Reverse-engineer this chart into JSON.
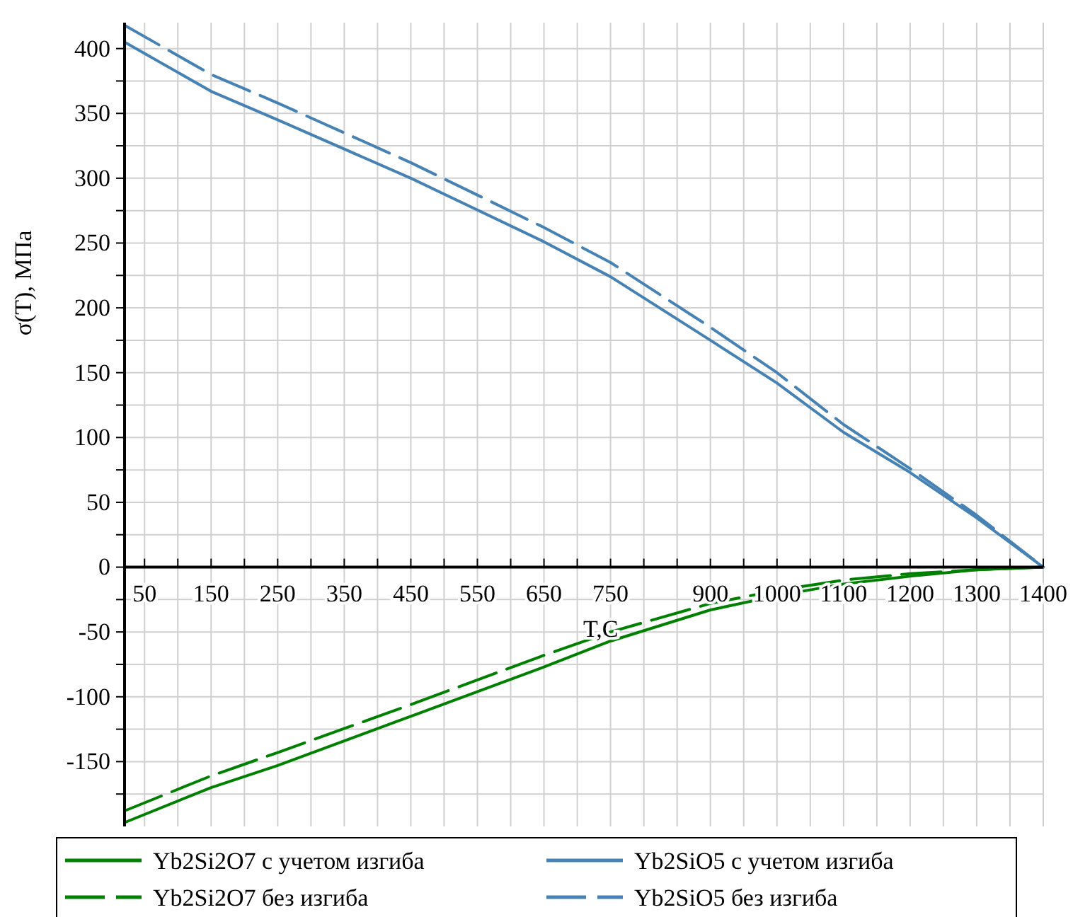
{
  "chart_data": {
    "type": "line",
    "xlabel": "T,C",
    "ylabel": "σ(T), МПа",
    "xlim": [
      20,
      1400
    ],
    "ylim": [
      -200,
      420
    ],
    "xticks": [
      50,
      {
        "value": 100,
        "label": null
      },
      150,
      {
        "value": 200,
        "label": null
      },
      250,
      {
        "value": 300,
        "label": null
      },
      350,
      {
        "value": 400,
        "label": null
      },
      450,
      {
        "value": 500,
        "label": null
      },
      550,
      {
        "value": 600,
        "label": null
      },
      650,
      {
        "value": 700,
        "label": null
      },
      750,
      {
        "value": 800,
        "label": null
      },
      {
        "value": 850,
        "label": null
      },
      900,
      {
        "value": 950,
        "label": null
      },
      1000,
      {
        "value": 1050,
        "label": null
      },
      1100,
      {
        "value": 1150,
        "label": null
      },
      1200,
      {
        "value": 1250,
        "label": null
      },
      1300,
      {
        "value": 1350,
        "label": null
      },
      1400
    ],
    "yticks": [
      {
        "value": -175,
        "label": null
      },
      -150,
      {
        "value": -125,
        "label": null
      },
      -100,
      {
        "value": -75,
        "label": null
      },
      -50,
      {
        "value": -25,
        "label": null
      },
      0,
      {
        "value": 25,
        "label": null
      },
      50,
      {
        "value": 75,
        "label": null
      },
      100,
      {
        "value": 125,
        "label": null
      },
      150,
      {
        "value": 175,
        "label": null
      },
      200,
      {
        "value": 225,
        "label": null
      },
      250,
      {
        "value": 275,
        "label": null
      },
      300,
      {
        "value": 325,
        "label": null
      },
      350,
      {
        "value": 375,
        "label": null
      },
      400
    ],
    "grid": true,
    "legend": "bottom",
    "marker": "none",
    "x": [
      20,
      150,
      250,
      450,
      650,
      750,
      900,
      1000,
      1100,
      1200,
      1300,
      1400
    ],
    "series": [
      {
        "name": "Yb2Si2O7 с учетом изгиба",
        "color": "#008000",
        "line_style": "solid",
        "values": [
          -197,
          -170,
          -153,
          -115,
          -77,
          -57,
          -33,
          -22,
          -13,
          -7,
          -2,
          0
        ]
      },
      {
        "name": "Yb2SiO5 с учетом изгиба",
        "color": "#4682b4",
        "line_style": "solid",
        "values": [
          405,
          367,
          345,
          300,
          251,
          224,
          175,
          142,
          104,
          73,
          38,
          0
        ]
      },
      {
        "name": "Yb2Si2O7 без изгиба",
        "color": "#008000",
        "line_style": "dashed",
        "values": [
          -188,
          -161,
          -143,
          -106,
          -68,
          -50,
          -28,
          -18,
          -10,
          -5,
          -2,
          0
        ]
      },
      {
        "name": "Yb2SiO5 без изгиба",
        "color": "#4682b4",
        "line_style": "dashed",
        "values": [
          418,
          380,
          358,
          312,
          262,
          235,
          185,
          150,
          110,
          76,
          40,
          0
        ]
      }
    ]
  }
}
